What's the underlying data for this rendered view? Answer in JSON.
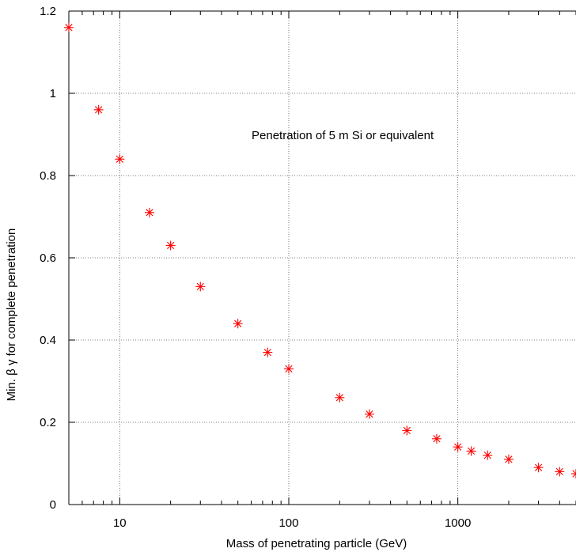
{
  "chart_data": {
    "type": "scatter",
    "title": "",
    "xlabel": "Mass of penetrating particle  (GeV)",
    "ylabel": "Min. β γ for complete penetration",
    "xscale": "log",
    "xlim": [
      5,
      5000
    ],
    "ylim": [
      0,
      1.2
    ],
    "x_ticks": [
      10,
      100,
      1000
    ],
    "x_tick_labels": [
      "10",
      "100",
      "1000"
    ],
    "y_ticks": [
      0,
      0.2,
      0.4,
      0.6,
      0.8,
      1.0,
      1.2
    ],
    "y_tick_labels": [
      "0",
      "0.2",
      "0.4",
      "0.6",
      "0.8",
      "1",
      "1.2"
    ],
    "grid": true,
    "marker": "asterisk",
    "color": "#ff0000",
    "annotation": "Penetration of 5 m Si or equivalent",
    "series": [
      {
        "points": [
          [
            5,
            1.16
          ],
          [
            7.5,
            0.96
          ],
          [
            10,
            0.84
          ],
          [
            15,
            0.71
          ],
          [
            20,
            0.63
          ],
          [
            30,
            0.53
          ],
          [
            50,
            0.44
          ],
          [
            75,
            0.37
          ],
          [
            100,
            0.33
          ],
          [
            200,
            0.26
          ],
          [
            300,
            0.22
          ],
          [
            500,
            0.18
          ],
          [
            750,
            0.16
          ],
          [
            1000,
            0.14
          ],
          [
            1200,
            0.13
          ],
          [
            1500,
            0.12
          ],
          [
            2000,
            0.11
          ],
          [
            3000,
            0.09
          ],
          [
            4000,
            0.08
          ],
          [
            5000,
            0.075
          ]
        ]
      }
    ]
  }
}
